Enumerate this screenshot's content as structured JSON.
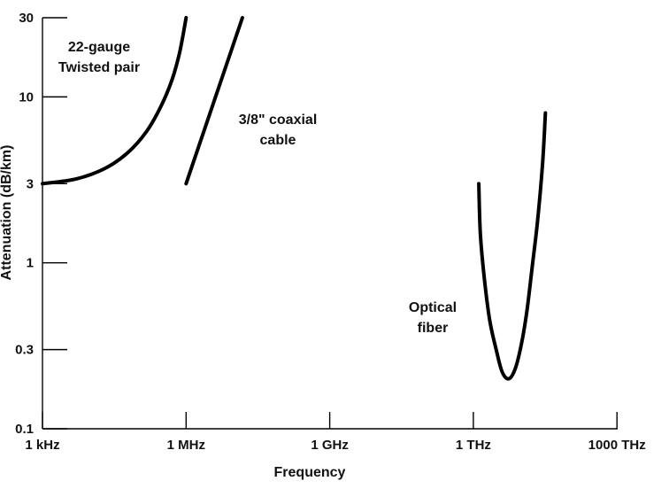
{
  "chart_data": {
    "type": "line",
    "xlabel": "Frequency",
    "ylabel": "Attenuation (dB/km)",
    "x_scale": "log",
    "y_scale": "log",
    "xlim_hz": [
      1000,
      1e+18
    ],
    "ylim": [
      0.1,
      30
    ],
    "x_ticks": [
      {
        "value": 1000,
        "label": "1 kHz"
      },
      {
        "value": 1000000,
        "label": "1 MHz"
      },
      {
        "value": 1000000000,
        "label": "1 GHz"
      },
      {
        "value": 1000000000000,
        "label": "1 THz"
      },
      {
        "value": 1000000000000000,
        "label": "1000 THz"
      }
    ],
    "y_ticks": [
      {
        "value": 0.1,
        "label": "0.1"
      },
      {
        "value": 0.3,
        "label": "0.3"
      },
      {
        "value": 1,
        "label": "1"
      },
      {
        "value": 3,
        "label": "3"
      },
      {
        "value": 10,
        "label": "10"
      },
      {
        "value": 30,
        "label": "30"
      }
    ],
    "grid": false,
    "series": [
      {
        "key": "twisted_pair",
        "label_lines": [
          "22-gauge",
          "Twisted pair"
        ],
        "points": [
          [
            1000,
            3.0
          ],
          [
            5000,
            3.2
          ],
          [
            20000,
            3.7
          ],
          [
            60000,
            4.6
          ],
          [
            150000,
            6.2
          ],
          [
            300000,
            8.8
          ],
          [
            500000,
            12.5
          ],
          [
            700000,
            17.5
          ],
          [
            850000,
            23.0
          ],
          [
            1000000,
            30.0
          ]
        ]
      },
      {
        "key": "coaxial",
        "label_lines": [
          "3/8\" coaxial",
          "cable"
        ],
        "points": [
          [
            1000000,
            3.0
          ],
          [
            15000000,
            30.0
          ]
        ]
      },
      {
        "key": "optical_fiber",
        "label_lines": [
          "Optical",
          "fiber"
        ],
        "points": [
          [
            1300000000000.0,
            3.0
          ],
          [
            1400000000000.0,
            1.5
          ],
          [
            1700000000000.0,
            0.8
          ],
          [
            2200000000000.0,
            0.45
          ],
          [
            3000000000000.0,
            0.3
          ],
          [
            4000000000000.0,
            0.22
          ],
          [
            5500000000000.0,
            0.2
          ],
          [
            7500000000000.0,
            0.23
          ],
          [
            10000000000000.0,
            0.32
          ],
          [
            13000000000000.0,
            0.5
          ],
          [
            17000000000000.0,
            0.95
          ],
          [
            22000000000000.0,
            1.8
          ],
          [
            28000000000000.0,
            4.0
          ],
          [
            32000000000000.0,
            8.0
          ]
        ]
      }
    ]
  }
}
